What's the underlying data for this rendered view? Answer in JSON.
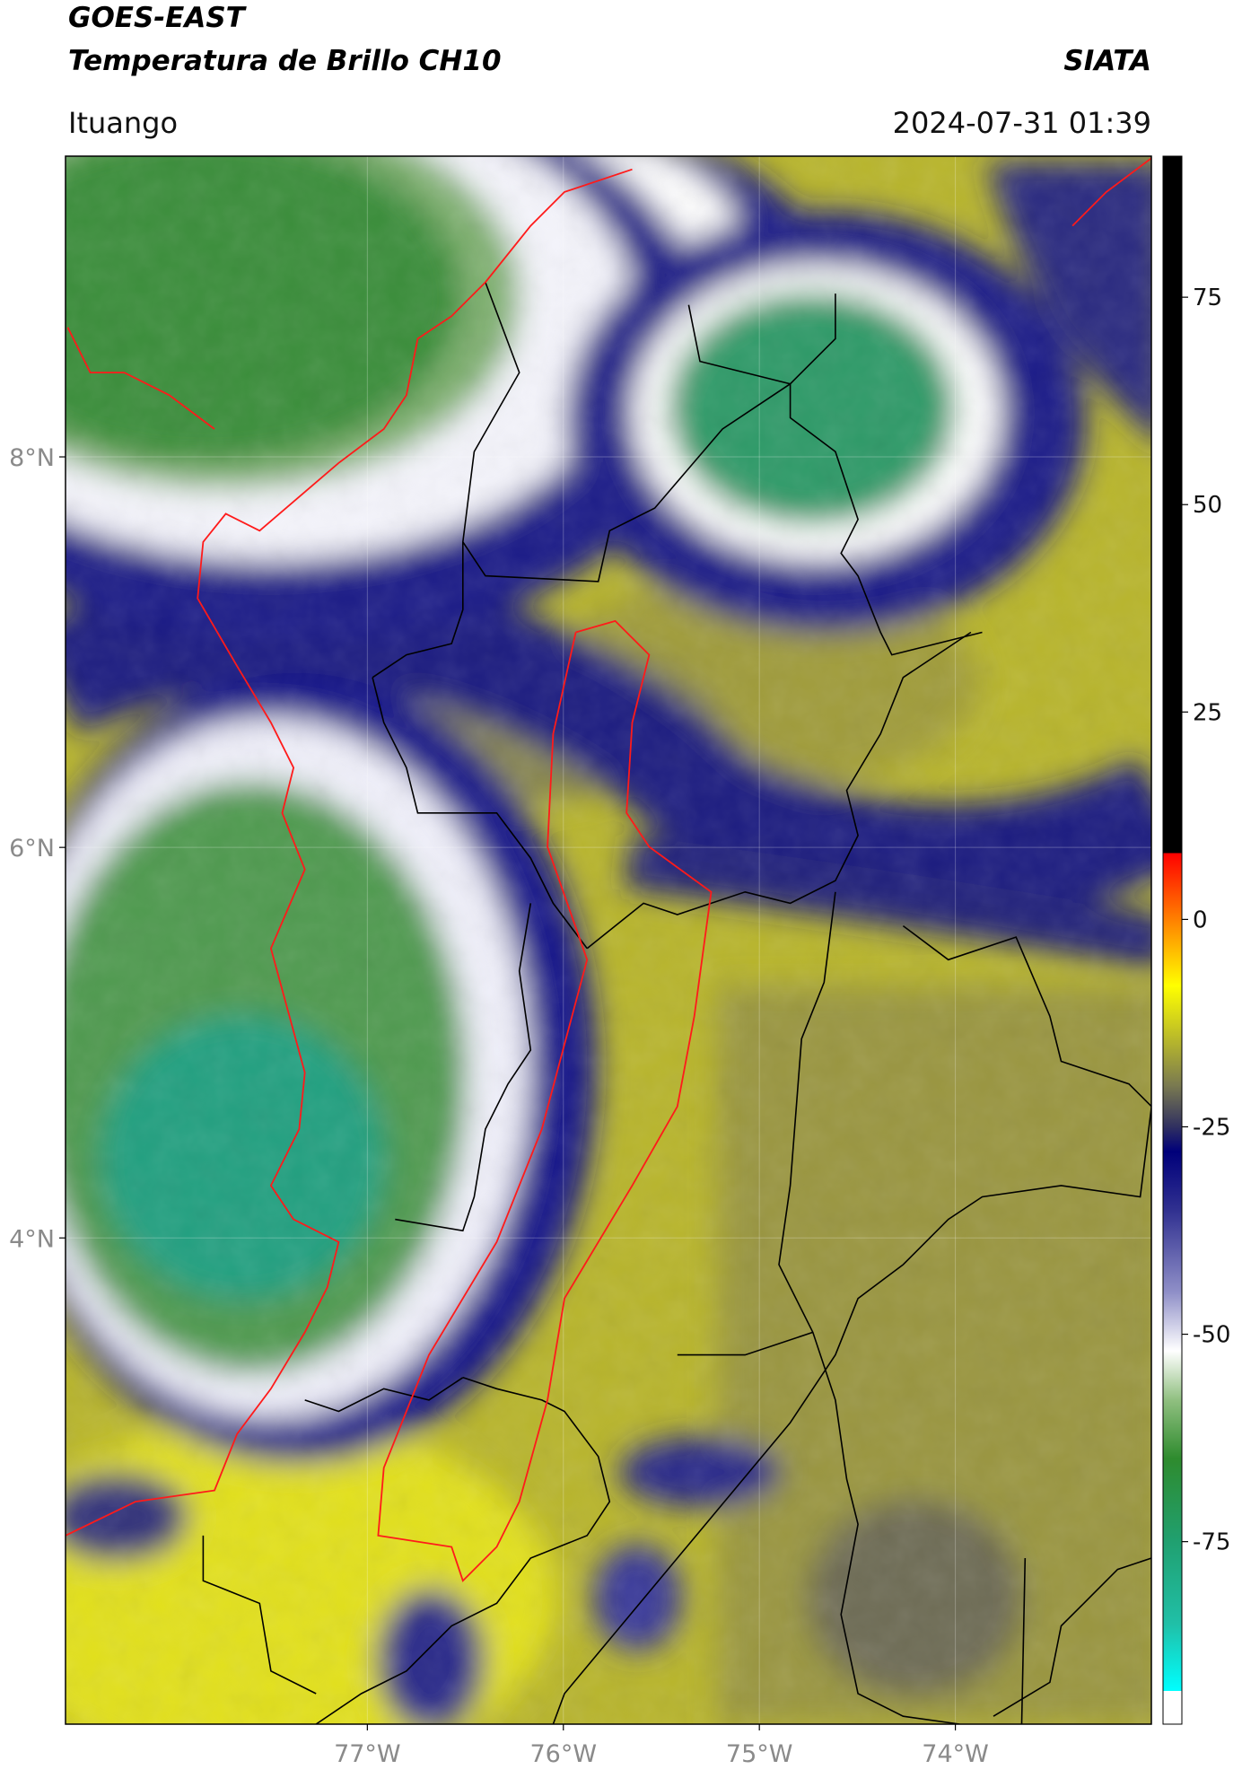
{
  "header": {
    "title": "GOES-EAST",
    "subtitle": "Temperatura de Brillo CH10",
    "source": "SIATA",
    "location": "Ituango",
    "datetime": "2024-07-31 01:39"
  },
  "map": {
    "lonlim": [
      -78.54,
      -73.0
    ],
    "latlim": [
      1.51,
      9.54
    ],
    "grid": true,
    "xticks": [
      {
        "value": -77,
        "label": "77°W"
      },
      {
        "value": -76,
        "label": "76°W"
      },
      {
        "value": -75,
        "label": "75°W"
      },
      {
        "value": -74,
        "label": "74°W"
      }
    ],
    "yticks": [
      {
        "value": 4,
        "label": "4°N"
      },
      {
        "value": 6,
        "label": "6°N"
      },
      {
        "value": 8,
        "label": "8°N"
      }
    ]
  },
  "colorbar": {
    "lim": [
      -97,
      92
    ],
    "ticks": [
      -75,
      -50,
      -25,
      0,
      25,
      50,
      75
    ],
    "stops": [
      {
        "value": -97,
        "color": "#ffffff"
      },
      {
        "value": -93,
        "color": "#ffffff"
      },
      {
        "value": -93,
        "color": "#00ffff"
      },
      {
        "value": -85,
        "color": "#20c0a8"
      },
      {
        "value": -75,
        "color": "#20a070"
      },
      {
        "value": -65,
        "color": "#2e8b2e"
      },
      {
        "value": -58,
        "color": "#8fbf7f"
      },
      {
        "value": -52,
        "color": "#ffffff"
      },
      {
        "value": -45,
        "color": "#9090c8"
      },
      {
        "value": -35,
        "color": "#303090"
      },
      {
        "value": -28,
        "color": "#00007a"
      },
      {
        "value": -25,
        "color": "#303060"
      },
      {
        "value": -20,
        "color": "#7a7a50"
      },
      {
        "value": -12,
        "color": "#d4d41a"
      },
      {
        "value": -8,
        "color": "#ffff00"
      },
      {
        "value": -2,
        "color": "#ffa000"
      },
      {
        "value": 5,
        "color": "#ff3000"
      },
      {
        "value": 8,
        "color": "#ff0000"
      },
      {
        "value": 8,
        "color": "#000000"
      },
      {
        "value": 92,
        "color": "#000000"
      }
    ]
  }
}
